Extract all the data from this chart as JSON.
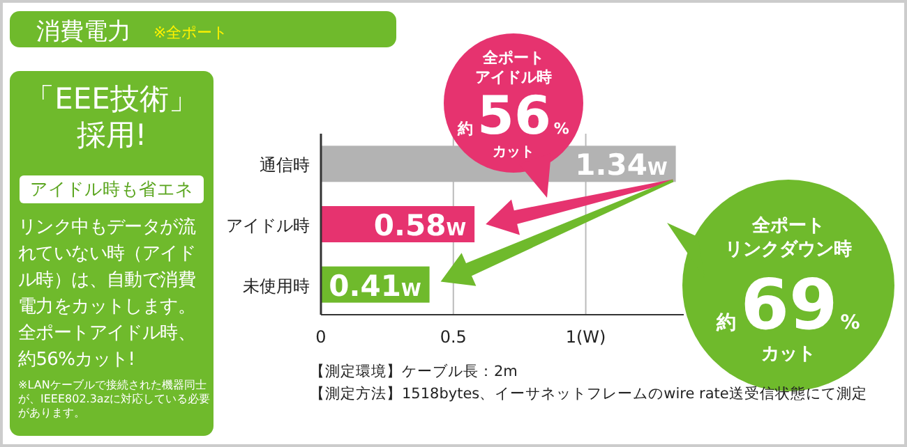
{
  "chart_data": {
    "type": "bar",
    "orientation": "horizontal",
    "title": "消費電力",
    "subtitle": "※全ポート",
    "categories": [
      "通信時",
      "アイドル時",
      "未使用時"
    ],
    "values": [
      1.34,
      0.58,
      0.41
    ],
    "colors": [
      "#b3b3b3",
      "#e6336f",
      "#6fba2c"
    ],
    "value_labels": [
      "1.34W",
      "0.58W",
      "0.41W"
    ],
    "xlim": [
      0,
      1.37
    ],
    "xticks": [
      0,
      0.5,
      {
        "value": 1,
        "label": "1(W)"
      }
    ],
    "grid": "x",
    "annotations": [
      "「EEE技術」",
      "採用!",
      "アイドル時も省エネ",
      "リンク中もデータが流れていない時（アイドル時）は、自動で消費電力をカットします。全ポートアイドル時、約56%カット!",
      "※LANケーブルで接続された機器同士が、IEEE802.3azに対応している必要があります。",
      "全ポート",
      "アイドル時",
      "約56%",
      "カット",
      "全ポート",
      "リンクダウン時",
      "約69%",
      "カット",
      "【測定環境】ケーブル長：2m",
      "【測定方法】1518bytes、イーサネットフレームのwire rate送受信状態にて測定"
    ]
  }
}
